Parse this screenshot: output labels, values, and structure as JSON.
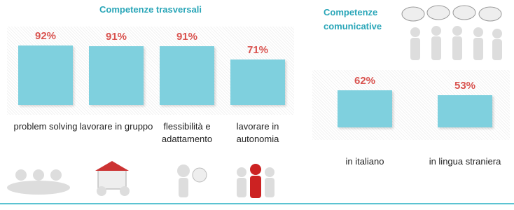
{
  "chart_data": [
    {
      "type": "bar",
      "title": "Competenze trasversali",
      "categories": [
        "problem solving",
        "lavorare in gruppo",
        "flessibilità e adattamento",
        "lavorare in autonomia"
      ],
      "values": [
        92,
        91,
        91,
        71
      ],
      "value_labels": [
        "92%",
        "91%",
        "91%",
        "71%"
      ],
      "color": "#7fd0de"
    },
    {
      "type": "bar",
      "title": "Competenze comunicative",
      "categories": [
        "in italiano",
        "in lingua straniera"
      ],
      "values": [
        62,
        53
      ],
      "value_labels": [
        "62%",
        "53%"
      ],
      "color": "#7fd0de"
    }
  ]
}
